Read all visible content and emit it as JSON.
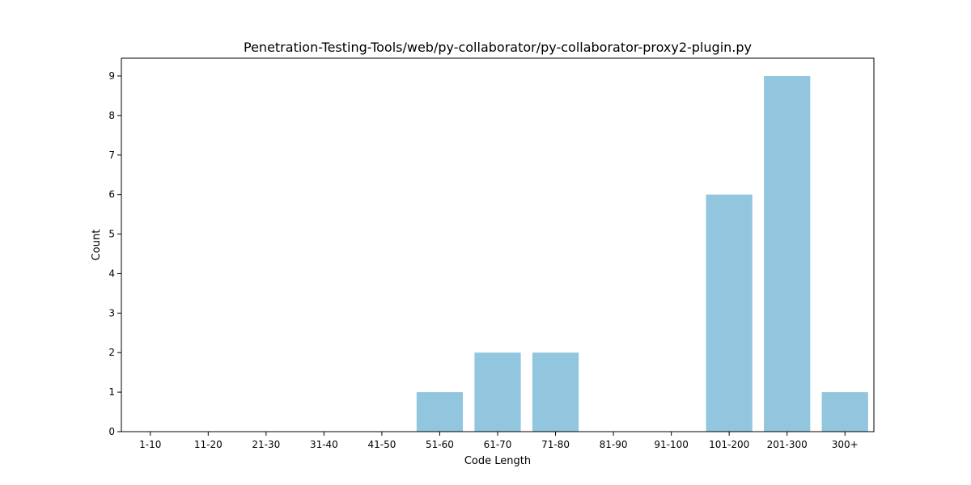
{
  "chart_data": {
    "type": "bar",
    "title": "Penetration-Testing-Tools/web/py-collaborator/py-collaborator-proxy2-plugin.py",
    "xlabel": "Code Length",
    "ylabel": "Count",
    "categories": [
      "1-10",
      "11-20",
      "21-30",
      "31-40",
      "41-50",
      "51-60",
      "61-70",
      "71-80",
      "81-90",
      "91-100",
      "101-200",
      "201-300",
      "300+"
    ],
    "values": [
      0,
      0,
      0,
      0,
      0,
      1,
      2,
      2,
      0,
      0,
      6,
      9,
      1
    ],
    "ylim": [
      0,
      9.45
    ],
    "yticks": [
      0,
      1,
      2,
      3,
      4,
      5,
      6,
      7,
      8,
      9
    ],
    "bar_color": "#92c5de",
    "grid": false,
    "legend": "none"
  }
}
